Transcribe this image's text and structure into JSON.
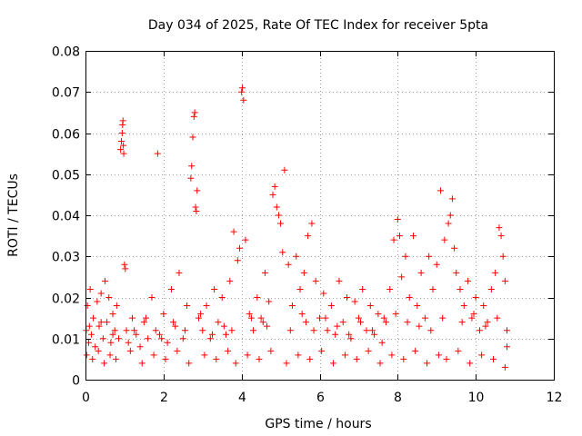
{
  "chart_data": {
    "type": "scatter",
    "title": "Day 034 of 2025, Rate Of TEC Index for receiver 5pta",
    "xlabel": "GPS time / hours",
    "ylabel": "ROTI / TECUs",
    "xlim": [
      0,
      12
    ],
    "ylim": [
      0,
      0.08
    ],
    "xticks": [
      0,
      2,
      4,
      6,
      8,
      10,
      12
    ],
    "yticks": [
      0,
      0.01,
      0.02,
      0.03,
      0.04,
      0.05,
      0.06,
      0.07,
      0.08
    ],
    "xtick_labels": [
      "0",
      "2",
      "4",
      "6",
      "8",
      "10",
      "12"
    ],
    "ytick_labels": [
      "0",
      "0.01",
      "0.02",
      "0.03",
      "0.04",
      "0.05",
      "0.06",
      "0.07",
      "0.08"
    ],
    "grid": true,
    "marker": "+",
    "marker_color": "#ff0000",
    "series": [
      {
        "name": "ROTI",
        "x": [
          0.02,
          0.05,
          0.08,
          0.12,
          0.15,
          0.2,
          0.25,
          0.3,
          0.35,
          0.4,
          0.45,
          0.5,
          0.55,
          0.6,
          0.65,
          0.7,
          0.75,
          0.8,
          0.85,
          0.9,
          0.92,
          0.94,
          0.95,
          0.96,
          0.97,
          0.98,
          1.0,
          1.02,
          1.05,
          1.1,
          1.2,
          1.3,
          1.4,
          1.5,
          1.6,
          1.7,
          1.8,
          1.85,
          1.9,
          2.0,
          2.1,
          2.2,
          2.3,
          2.4,
          2.5,
          2.6,
          2.7,
          2.72,
          2.75,
          2.78,
          2.8,
          2.82,
          2.84,
          2.86,
          2.9,
          3.0,
          3.1,
          3.2,
          3.3,
          3.4,
          3.5,
          3.6,
          3.7,
          3.8,
          3.9,
          3.95,
          4.0,
          4.02,
          4.05,
          4.1,
          4.2,
          4.3,
          4.4,
          4.5,
          4.6,
          4.7,
          4.8,
          4.85,
          4.9,
          4.95,
          5.0,
          5.05,
          5.1,
          5.2,
          5.3,
          5.4,
          5.5,
          5.6,
          5.7,
          5.8,
          5.9,
          6.0,
          6.1,
          6.2,
          6.3,
          6.4,
          6.5,
          6.6,
          6.7,
          6.8,
          6.9,
          7.0,
          7.1,
          7.2,
          7.3,
          7.4,
          7.5,
          7.6,
          7.7,
          7.8,
          7.9,
          8.0,
          8.05,
          8.1,
          8.2,
          8.3,
          8.4,
          8.5,
          8.6,
          8.7,
          8.8,
          8.9,
          9.0,
          9.1,
          9.2,
          9.3,
          9.35,
          9.4,
          9.45,
          9.5,
          9.6,
          9.7,
          9.8,
          9.9,
          10.0,
          10.1,
          10.2,
          10.3,
          10.4,
          10.5,
          10.6,
          10.65,
          10.7,
          10.75,
          10.8,
          0.03,
          0.18,
          0.33,
          0.48,
          0.63,
          0.78,
          1.15,
          1.45,
          1.75,
          2.05,
          2.35,
          2.65,
          3.05,
          3.35,
          3.65,
          3.85,
          4.15,
          4.45,
          4.75,
          5.15,
          5.45,
          5.75,
          6.05,
          6.35,
          6.65,
          6.95,
          7.25,
          7.55,
          7.85,
          8.15,
          8.45,
          8.75,
          9.05,
          9.25,
          9.55,
          9.85,
          10.15,
          10.45,
          10.75,
          0.1,
          0.4,
          0.7,
          1.25,
          1.55,
          1.95,
          2.25,
          2.55,
          2.95,
          3.25,
          3.55,
          3.75,
          4.25,
          4.55,
          4.65,
          5.25,
          5.55,
          5.65,
          5.85,
          6.15,
          6.45,
          6.75,
          7.05,
          7.35,
          7.65,
          7.95,
          8.25,
          8.55,
          8.85,
          9.15,
          9.65,
          9.95,
          10.25,
          10.55,
          10.8
        ],
        "y": [
          0.012,
          0.018,
          0.009,
          0.022,
          0.011,
          0.015,
          0.008,
          0.019,
          0.013,
          0.021,
          0.01,
          0.024,
          0.014,
          0.02,
          0.009,
          0.016,
          0.012,
          0.018,
          0.01,
          0.056,
          0.058,
          0.06,
          0.062,
          0.063,
          0.057,
          0.055,
          0.028,
          0.027,
          0.012,
          0.009,
          0.015,
          0.011,
          0.008,
          0.014,
          0.01,
          0.02,
          0.012,
          0.055,
          0.011,
          0.016,
          0.009,
          0.022,
          0.013,
          0.026,
          0.01,
          0.018,
          0.049,
          0.052,
          0.059,
          0.064,
          0.065,
          0.042,
          0.041,
          0.046,
          0.015,
          0.012,
          0.018,
          0.01,
          0.022,
          0.014,
          0.02,
          0.011,
          0.024,
          0.036,
          0.029,
          0.032,
          0.07,
          0.071,
          0.068,
          0.034,
          0.016,
          0.012,
          0.02,
          0.015,
          0.026,
          0.019,
          0.045,
          0.047,
          0.042,
          0.04,
          0.038,
          0.031,
          0.051,
          0.028,
          0.018,
          0.03,
          0.022,
          0.026,
          0.035,
          0.038,
          0.024,
          0.015,
          0.021,
          0.012,
          0.018,
          0.011,
          0.024,
          0.014,
          0.02,
          0.01,
          0.019,
          0.015,
          0.022,
          0.012,
          0.018,
          0.011,
          0.016,
          0.009,
          0.014,
          0.022,
          0.034,
          0.039,
          0.035,
          0.025,
          0.03,
          0.02,
          0.035,
          0.018,
          0.026,
          0.015,
          0.03,
          0.022,
          0.028,
          0.046,
          0.034,
          0.038,
          0.04,
          0.044,
          0.032,
          0.026,
          0.022,
          0.018,
          0.024,
          0.015,
          0.02,
          0.012,
          0.018,
          0.014,
          0.022,
          0.026,
          0.037,
          0.035,
          0.03,
          0.024,
          0.008,
          0.006,
          0.005,
          0.007,
          0.004,
          0.006,
          0.005,
          0.007,
          0.004,
          0.006,
          0.005,
          0.007,
          0.004,
          0.006,
          0.005,
          0.007,
          0.004,
          0.006,
          0.005,
          0.007,
          0.004,
          0.006,
          0.005,
          0.007,
          0.004,
          0.006,
          0.005,
          0.007,
          0.004,
          0.006,
          0.005,
          0.007,
          0.004,
          0.006,
          0.005,
          0.007,
          0.004,
          0.006,
          0.005,
          0.003,
          0.013,
          0.014,
          0.011,
          0.012,
          0.015,
          0.01,
          0.014,
          0.012,
          0.016,
          0.011,
          0.013,
          0.012,
          0.015,
          0.014,
          0.013,
          0.012,
          0.016,
          0.014,
          0.012,
          0.015,
          0.013,
          0.011,
          0.014,
          0.012,
          0.015,
          0.016,
          0.014,
          0.013,
          0.012,
          0.015,
          0.014,
          0.016,
          0.013,
          0.015,
          0.012
        ]
      }
    ]
  }
}
